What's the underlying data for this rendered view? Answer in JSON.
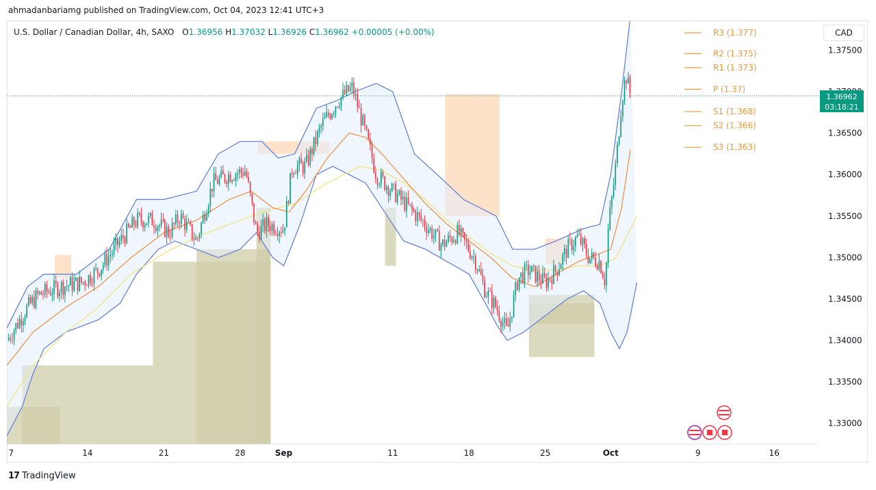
{
  "header": {
    "published_line": "ahmadanbariamg published on TradingView.com, Oct 04, 2023 12:41 UTC+3"
  },
  "symbol": {
    "name": "U.S. Dollar / Canadian Dollar, 4h, SAXO",
    "open_label": "O",
    "open": "1.36956",
    "high_label": "H",
    "high": "1.37032",
    "low_label": "L",
    "low": "1.36926",
    "close_label": "C",
    "close": "1.36962",
    "change": "+0.00005 (+0.00%)"
  },
  "currency_button": "CAD",
  "price_tag": {
    "price": "1.36962",
    "countdown": "03:18:21",
    "color": "#089981"
  },
  "footer": {
    "brand": "TradingView",
    "logo_glyph": "17"
  },
  "colors": {
    "up": "#089981",
    "down": "#f23645",
    "bb": "#5b7bd6",
    "bb_fill": "#e3eefb",
    "ema_fast": "#f08c3c",
    "sma_slow": "#f2e27a",
    "pivot": "#e89a3c",
    "zone_supply": "#fcd7b5",
    "zone_demand": "#cfcca8"
  },
  "chart_data": {
    "type": "candlestick",
    "symbol": "USDCAD",
    "timeframe": "4h",
    "ylim": [
      1.3275,
      1.3785
    ],
    "y_ticks": [
      "1.37500",
      "1.37000",
      "1.36500",
      "1.36000",
      "1.35500",
      "1.35000",
      "1.34500",
      "1.34000",
      "1.33500",
      "1.33000"
    ],
    "y_tick_values": [
      1.375,
      1.37,
      1.365,
      1.36,
      1.355,
      1.35,
      1.345,
      1.34,
      1.335,
      1.33
    ],
    "x_ticks": [
      "7",
      "14",
      "21",
      "28",
      "Sep",
      "11",
      "18",
      "25",
      "Oct",
      "9",
      "16"
    ],
    "x_tick_days": [
      7,
      14,
      21,
      28,
      32,
      42,
      49,
      56,
      62,
      70,
      77
    ],
    "x_range_days": [
      6.6,
      81
    ],
    "last_bar_day": 63.8,
    "pivots": [
      {
        "label": "R3 (1.377)",
        "value": 1.3771
      },
      {
        "label": "R2 (1.375)",
        "value": 1.3746
      },
      {
        "label": "R1 (1.373)",
        "value": 1.3729
      },
      {
        "label": "P (1.37)",
        "value": 1.3703
      },
      {
        "label": "S1 (1.368)",
        "value": 1.3676
      },
      {
        "label": "S2 (1.366)",
        "value": 1.3659
      },
      {
        "label": "S3 (1.363)",
        "value": 1.3633
      }
    ],
    "close_path": [
      [
        6.6,
        1.34
      ],
      [
        8.5,
        1.344
      ],
      [
        9.5,
        1.3455
      ],
      [
        11.5,
        1.3465
      ],
      [
        13.5,
        1.347
      ],
      [
        15,
        1.3485
      ],
      [
        17,
        1.352
      ],
      [
        18.5,
        1.3545
      ],
      [
        20,
        1.3545
      ],
      [
        21.5,
        1.353
      ],
      [
        22.5,
        1.355
      ],
      [
        24,
        1.352
      ],
      [
        25.5,
        1.359
      ],
      [
        27,
        1.36
      ],
      [
        28.5,
        1.3605
      ],
      [
        29.5,
        1.353
      ],
      [
        30.5,
        1.354
      ],
      [
        32,
        1.3535
      ],
      [
        32.8,
        1.361
      ],
      [
        34,
        1.361
      ],
      [
        35.5,
        1.366
      ],
      [
        37,
        1.369
      ],
      [
        38.3,
        1.3705
      ],
      [
        39.5,
        1.365
      ],
      [
        40.5,
        1.36
      ],
      [
        42,
        1.358
      ],
      [
        43.5,
        1.356
      ],
      [
        45,
        1.354
      ],
      [
        46.5,
        1.3515
      ],
      [
        48,
        1.353
      ],
      [
        49.5,
        1.35
      ],
      [
        50.5,
        1.346
      ],
      [
        51.5,
        1.344
      ],
      [
        52.5,
        1.341
      ],
      [
        53.5,
        1.3475
      ],
      [
        54.5,
        1.3485
      ],
      [
        56,
        1.347
      ],
      [
        57,
        1.3485
      ],
      [
        58,
        1.351
      ],
      [
        59,
        1.3525
      ],
      [
        60,
        1.35
      ],
      [
        61,
        1.3495
      ],
      [
        61.5,
        1.347
      ],
      [
        61.8,
        1.354
      ],
      [
        62.2,
        1.358
      ],
      [
        62.6,
        1.363
      ],
      [
        63,
        1.369
      ],
      [
        63.4,
        1.372
      ],
      [
        63.8,
        1.3696
      ]
    ],
    "bb_upper": [
      [
        6.6,
        1.3415
      ],
      [
        8.5,
        1.3465
      ],
      [
        10,
        1.348
      ],
      [
        13,
        1.348
      ],
      [
        16,
        1.351
      ],
      [
        18.5,
        1.357
      ],
      [
        21,
        1.357
      ],
      [
        24,
        1.358
      ],
      [
        26,
        1.3625
      ],
      [
        28,
        1.364
      ],
      [
        30,
        1.364
      ],
      [
        31.5,
        1.362
      ],
      [
        33,
        1.3625
      ],
      [
        35,
        1.368
      ],
      [
        37,
        1.369
      ],
      [
        38.5,
        1.37
      ],
      [
        40.5,
        1.371
      ],
      [
        42,
        1.37
      ],
      [
        44,
        1.3625
      ],
      [
        46.5,
        1.3595
      ],
      [
        48.5,
        1.357
      ],
      [
        50,
        1.356
      ],
      [
        51.5,
        1.355
      ],
      [
        53,
        1.351
      ],
      [
        55,
        1.351
      ],
      [
        57,
        1.352
      ],
      [
        59.5,
        1.3535
      ],
      [
        61,
        1.354
      ],
      [
        62,
        1.36
      ],
      [
        63,
        1.37
      ],
      [
        63.8,
        1.379
      ]
    ],
    "bb_lower": [
      [
        6.6,
        1.3285
      ],
      [
        8,
        1.332
      ],
      [
        9,
        1.336
      ],
      [
        10,
        1.339
      ],
      [
        12,
        1.341
      ],
      [
        15,
        1.3425
      ],
      [
        17,
        1.3445
      ],
      [
        18.5,
        1.348
      ],
      [
        20.5,
        1.351
      ],
      [
        22,
        1.352
      ],
      [
        24,
        1.351
      ],
      [
        26,
        1.35
      ],
      [
        28,
        1.351
      ],
      [
        29.5,
        1.353
      ],
      [
        31,
        1.35
      ],
      [
        32,
        1.349
      ],
      [
        33.5,
        1.354
      ],
      [
        35,
        1.36
      ],
      [
        36.5,
        1.361
      ],
      [
        38,
        1.36
      ],
      [
        39.5,
        1.359
      ],
      [
        41,
        1.356
      ],
      [
        43,
        1.352
      ],
      [
        45,
        1.351
      ],
      [
        47,
        1.3495
      ],
      [
        49,
        1.348
      ],
      [
        50.5,
        1.3445
      ],
      [
        51.5,
        1.342
      ],
      [
        52.5,
        1.34
      ],
      [
        54,
        1.341
      ],
      [
        56,
        1.343
      ],
      [
        58,
        1.345
      ],
      [
        59.5,
        1.346
      ],
      [
        61,
        1.3445
      ],
      [
        62,
        1.341
      ],
      [
        62.8,
        1.339
      ],
      [
        63.5,
        1.341
      ],
      [
        64.4,
        1.347
      ]
    ],
    "ema": [
      [
        6.6,
        1.337
      ],
      [
        9,
        1.341
      ],
      [
        12,
        1.344
      ],
      [
        15,
        1.3465
      ],
      [
        18,
        1.35
      ],
      [
        21,
        1.353
      ],
      [
        24,
        1.3545
      ],
      [
        27,
        1.357
      ],
      [
        29,
        1.358
      ],
      [
        31,
        1.356
      ],
      [
        32.5,
        1.3555
      ],
      [
        34,
        1.358
      ],
      [
        36,
        1.362
      ],
      [
        38,
        1.365
      ],
      [
        39.5,
        1.3645
      ],
      [
        41,
        1.3625
      ],
      [
        43,
        1.3595
      ],
      [
        45,
        1.3565
      ],
      [
        47,
        1.354
      ],
      [
        49,
        1.352
      ],
      [
        51,
        1.35
      ],
      [
        53,
        1.3475
      ],
      [
        55,
        1.3465
      ],
      [
        57,
        1.348
      ],
      [
        59,
        1.3495
      ],
      [
        61,
        1.3505
      ],
      [
        62,
        1.351
      ],
      [
        63,
        1.356
      ],
      [
        63.8,
        1.363
      ]
    ],
    "sma": [
      [
        6.6,
        1.332
      ],
      [
        9,
        1.337
      ],
      [
        12,
        1.341
      ],
      [
        15,
        1.344
      ],
      [
        18,
        1.348
      ],
      [
        21,
        1.3505
      ],
      [
        24,
        1.3525
      ],
      [
        27,
        1.354
      ],
      [
        30,
        1.3555
      ],
      [
        33,
        1.3565
      ],
      [
        36,
        1.359
      ],
      [
        39,
        1.361
      ],
      [
        41,
        1.3605
      ],
      [
        43,
        1.359
      ],
      [
        45,
        1.357
      ],
      [
        47,
        1.3545
      ],
      [
        49,
        1.3525
      ],
      [
        51,
        1.3505
      ],
      [
        53,
        1.349
      ],
      [
        55,
        1.3485
      ],
      [
        57,
        1.3485
      ],
      [
        59,
        1.349
      ],
      [
        61,
        1.349
      ],
      [
        62.5,
        1.35
      ],
      [
        64.4,
        1.355
      ]
    ]
  }
}
